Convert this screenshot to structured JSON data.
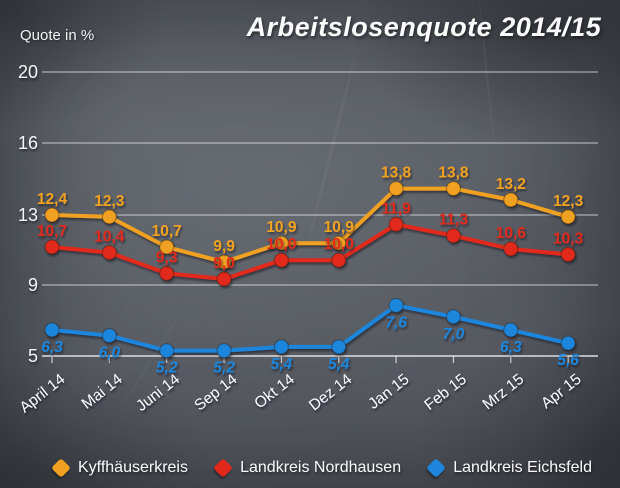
{
  "title": "Arbeitslosenquote 2014/15",
  "y_axis_label": "Quote in %",
  "chart_data": {
    "type": "line",
    "title": "Arbeitslosenquote 2014/15",
    "ylabel": "Quote in %",
    "grid": true,
    "legend_position": "bottom",
    "categories": [
      "April 14",
      "Mai 14",
      "Juni 14",
      "Sep 14",
      "Okt 14",
      "Dez 14",
      "Jan 15",
      "Feb 15",
      "Mrz 15",
      "Apr 15"
    ],
    "y_ticks": [
      "20",
      "16",
      "13",
      "9",
      "5"
    ],
    "decimal_separator": ",",
    "series": [
      {
        "name": "Kyffhäuserkreis",
        "color": "#F0A122",
        "values": [
          12.4,
          12.3,
          10.7,
          9.9,
          10.9,
          10.9,
          13.8,
          13.8,
          13.2,
          12.3
        ]
      },
      {
        "name": "Landkreis Nordhausen",
        "color": "#E1291B",
        "values": [
          10.7,
          10.4,
          9.3,
          9.0,
          10.0,
          10.0,
          11.9,
          11.3,
          10.6,
          10.3
        ]
      },
      {
        "name": "Landkreis Eichsfeld",
        "color": "#1E86DC",
        "values": [
          6.3,
          6.0,
          5.2,
          5.2,
          5.4,
          5.4,
          7.6,
          7.0,
          6.3,
          5.6
        ]
      }
    ]
  },
  "legend": [
    {
      "label": "Kyffhäuserkreis",
      "color": "#F0A122"
    },
    {
      "label": "Landkreis Nordhausen",
      "color": "#E1291B"
    },
    {
      "label": "Landkreis Eichsfeld",
      "color": "#1E86DC"
    }
  ]
}
